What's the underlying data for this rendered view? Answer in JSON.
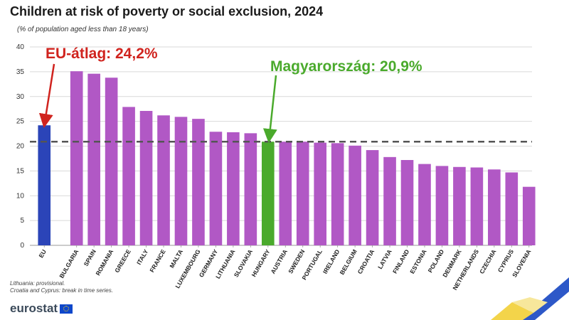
{
  "colors": {
    "eu": "#2b44b8",
    "hungary": "#4aaa2c",
    "default": "#b158c5",
    "eu_annot": "#d0231e",
    "hu_annot": "#4aaa2c"
  },
  "chart_data": {
    "type": "bar",
    "title": "Children at risk of poverty or social exclusion, 2024",
    "subtitle": "(% of population aged less than 18 years)",
    "ylim": [
      0,
      40
    ],
    "yticks": [
      0,
      5,
      10,
      15,
      20,
      25,
      30,
      35,
      40
    ],
    "grid": true,
    "categories": [
      "EU",
      "BULGARIA",
      "SPAIN",
      "ROMANIA",
      "GREECE",
      "ITALY",
      "FRANCE",
      "MALTA",
      "LUXEMBOURG",
      "GERMANY",
      "LITHUANIA",
      "SLOVAKIA",
      "HUNGARY",
      "AUSTRIA",
      "SWEDEN",
      "PORTUGAL",
      "IRELAND",
      "BELGIUM",
      "CROATIA",
      "LATVIA",
      "FINLAND",
      "ESTONIA",
      "POLAND",
      "DENMARK",
      "NETHERLANDS",
      "CZECHIA",
      "CYPRUS",
      "SLOVENIA"
    ],
    "values": [
      24.2,
      35.1,
      34.6,
      33.8,
      27.9,
      27.1,
      26.2,
      25.9,
      25.5,
      22.9,
      22.8,
      22.6,
      20.9,
      20.9,
      20.9,
      20.7,
      20.6,
      20.1,
      19.2,
      17.8,
      17.2,
      16.4,
      16.0,
      15.8,
      15.7,
      15.3,
      14.7,
      11.8
    ],
    "reference_line": 20.9,
    "annotations": {
      "eu": "EU-átlag: 24,2%",
      "hungary": "Magyarország: 20,9%"
    }
  },
  "footnotes": [
    "Lithuania: provisional.",
    "Croatia and Cyprus: break in time series."
  ],
  "logo": "eurostat"
}
